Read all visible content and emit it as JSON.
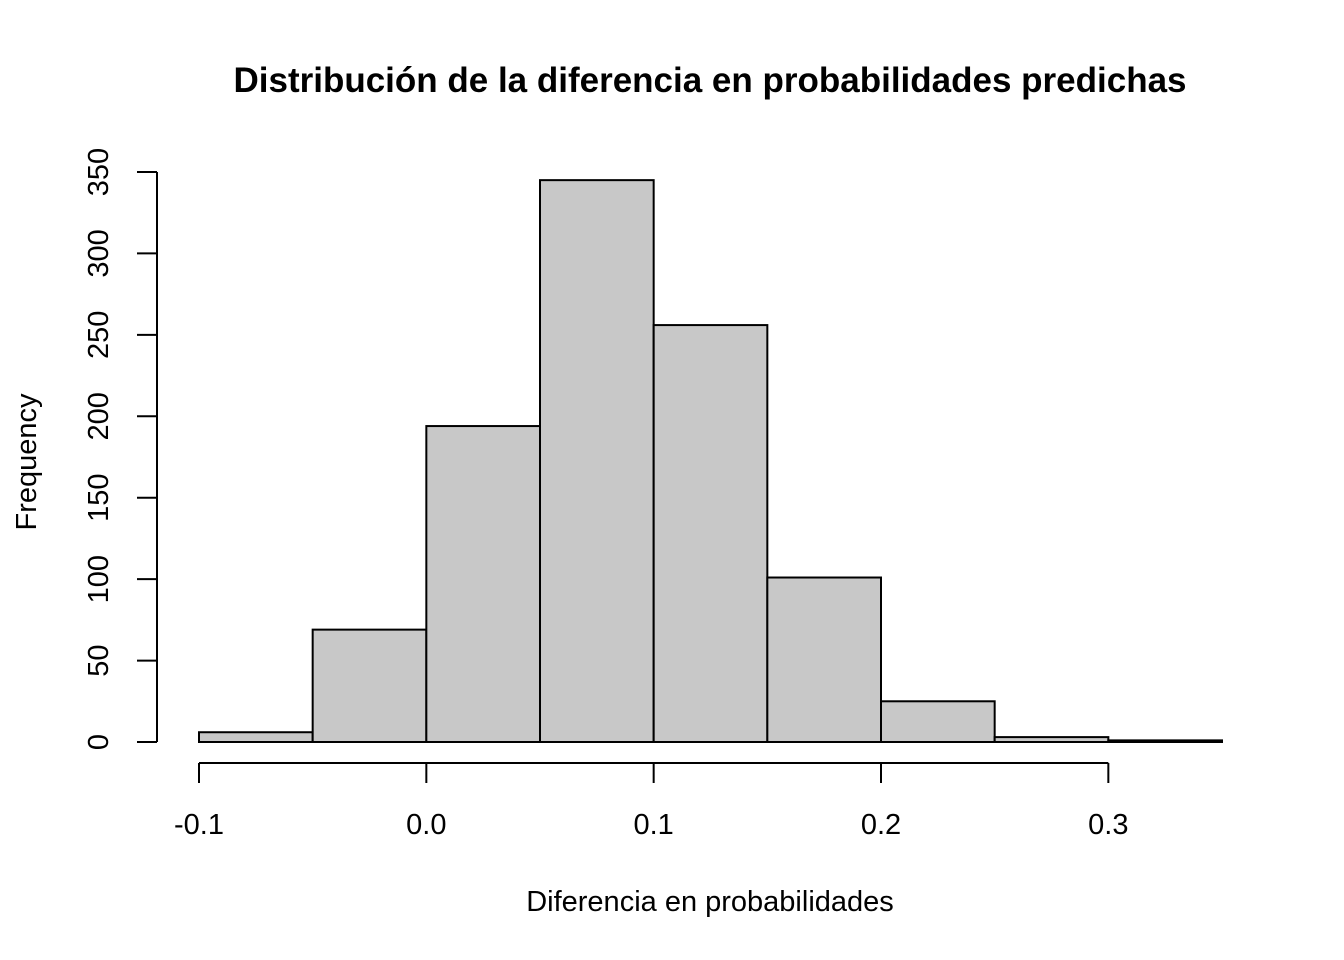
{
  "chart_data": {
    "type": "bar",
    "title": "Distribución de la diferencia en probabilidades predichas",
    "xlabel": "Diferencia en probabilidades",
    "ylabel": "Frequency",
    "bins": [
      {
        "from": -0.1,
        "to": -0.05,
        "count": 6
      },
      {
        "from": -0.05,
        "to": 0.0,
        "count": 69
      },
      {
        "from": 0.0,
        "to": 0.05,
        "count": 194
      },
      {
        "from": 0.05,
        "to": 0.1,
        "count": 345
      },
      {
        "from": 0.1,
        "to": 0.15,
        "count": 256
      },
      {
        "from": 0.15,
        "to": 0.2,
        "count": 101
      },
      {
        "from": 0.2,
        "to": 0.25,
        "count": 25
      },
      {
        "from": 0.25,
        "to": 0.3,
        "count": 3
      },
      {
        "from": 0.3,
        "to": 0.35,
        "count": 1
      }
    ],
    "xticks": [
      -0.1,
      0.0,
      0.1,
      0.2,
      0.3
    ],
    "xtick_labels": [
      "-0.1",
      "0.0",
      "0.1",
      "0.2",
      "0.3"
    ],
    "yticks": [
      0,
      50,
      100,
      150,
      200,
      250,
      300,
      350
    ],
    "ytick_labels": [
      "0",
      "50",
      "100",
      "150",
      "200",
      "250",
      "300",
      "350"
    ],
    "xlim": [
      -0.1,
      0.35
    ],
    "ylim": [
      0,
      350
    ],
    "grid": false,
    "bar_color": "#c8c8c8"
  }
}
